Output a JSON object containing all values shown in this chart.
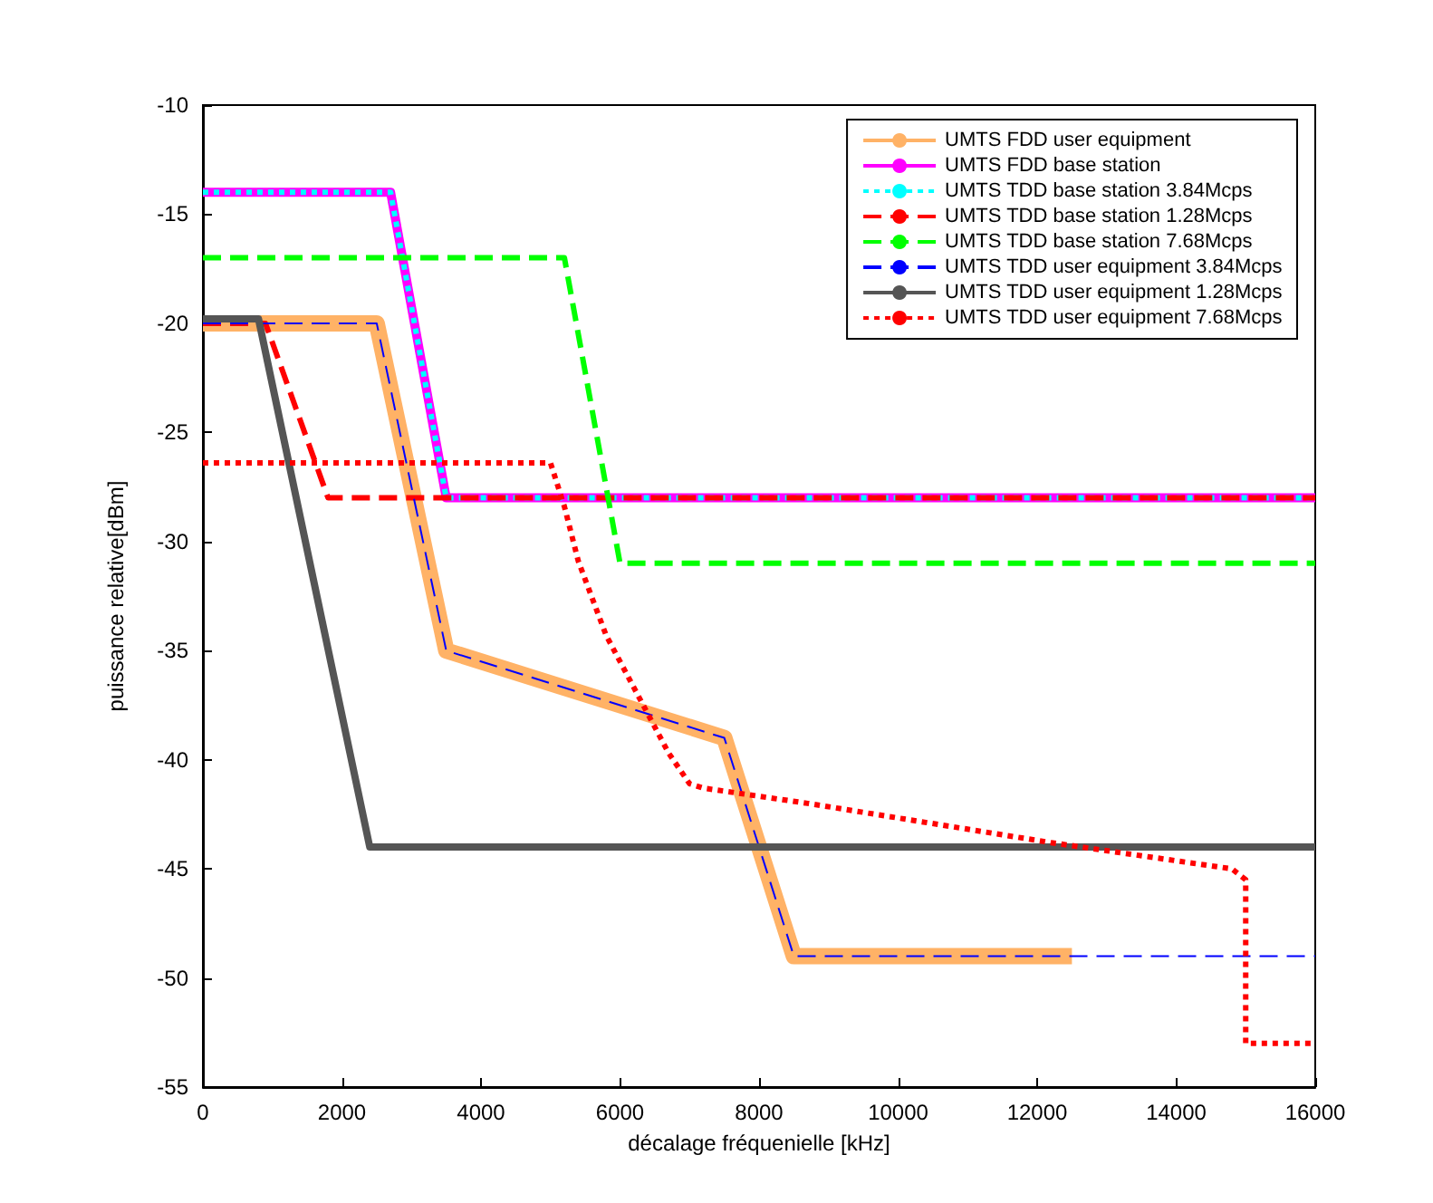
{
  "chart_data": {
    "type": "line",
    "xlabel": "décalage fréquenielle [kHz]",
    "ylabel": "puissance relative[dBm]",
    "xlim": [
      0,
      16000
    ],
    "xticks": [
      0,
      2000,
      4000,
      6000,
      8000,
      10000,
      12000,
      14000,
      16000
    ],
    "ylim": [
      -55,
      -10
    ],
    "yticks": [
      -55,
      -50,
      -45,
      -40,
      -35,
      -30,
      -25,
      -20,
      -15,
      -10
    ],
    "grid": false,
    "legend": "top right",
    "marker": "none",
    "series": [
      {
        "name": "UMTS FDD user equipment",
        "color": "#ffb266",
        "line_style": "solid",
        "x": [
          0,
          2500,
          3500,
          7500,
          8500,
          12500
        ],
        "values": [
          -20,
          -20,
          -35,
          -39,
          -49,
          -49
        ]
      },
      {
        "name": "UMTS FDD base station",
        "color": "#ff00ff",
        "line_style": "solid",
        "x": [
          0,
          2700,
          3500,
          16000
        ],
        "values": [
          -14,
          -14,
          -28,
          -28
        ]
      },
      {
        "name": "UMTS TDD base station 3.84Mcps",
        "color": "#00ffff",
        "line_style": "dotted",
        "x": [
          0,
          2700,
          3500,
          16000
        ],
        "values": [
          -14,
          -14,
          -28,
          -28
        ]
      },
      {
        "name": "UMTS TDD base station 1.28Mcps",
        "color": "#ff0000",
        "line_style": "dashed",
        "x": [
          0,
          900,
          1800,
          16000
        ],
        "values": [
          -20,
          -20,
          -28,
          -28
        ]
      },
      {
        "name": "UMTS TDD base station 7.68Mcps",
        "color": "#00ff00",
        "line_style": "dashed",
        "x": [
          0,
          5200,
          6000,
          16000
        ],
        "values": [
          -17,
          -17,
          -31,
          -31
        ]
      },
      {
        "name": "UMTS TDD user equipment 3.84Mcps",
        "color": "#0000ff",
        "line_style": "dashed",
        "x": [
          0,
          2500,
          3500,
          7500,
          8500,
          16000
        ],
        "values": [
          -20,
          -20,
          -35,
          -39,
          -49,
          -49
        ]
      },
      {
        "name": "UMTS TDD user equipment 1.28Mcps",
        "color": "#555555",
        "line_style": "solid",
        "x": [
          0,
          800,
          2400,
          16000
        ],
        "values": [
          -19.8,
          -19.8,
          -44,
          -44
        ]
      },
      {
        "name": "UMTS TDD user equipment 7.68Mcps",
        "color": "#ff0000",
        "line_style": "dotted",
        "x": [
          0,
          5000,
          5200,
          5400,
          5800,
          6200,
          6700,
          7000,
          7200,
          8700,
          12200,
          14800,
          15000,
          15000,
          16000
        ],
        "values": [
          -26.4,
          -26.4,
          -28.4,
          -30.9,
          -34.3,
          -36.7,
          -39.7,
          -41.1,
          -41.3,
          -42,
          -43.8,
          -45,
          -45.5,
          -53,
          -53
        ]
      }
    ]
  }
}
